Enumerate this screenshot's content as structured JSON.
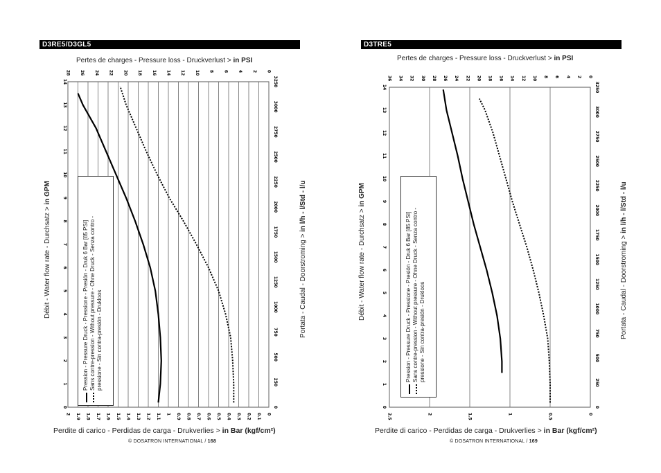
{
  "pages": [
    {
      "model": "D3RE5/D3GL5",
      "top_label_prefix": "Pertes de charges - Pressure loss - Druckverlust >",
      "top_label_unit": "in PSI",
      "left_label_prefix": "Débit - Water flow rate - Durchsatz >",
      "left_label_unit": "in GPM",
      "right_label_prefix": "Portata - Caudal - Doorstroming >",
      "right_label_unit": "in l/h - l/Std - l/u",
      "bottom_label_prefix": "Perdite di carico - Perdidas de carga - Drukverlies >",
      "bottom_label_unit": "in Bar (kgf/cm²)",
      "footer_text": "© DOSATRON INTERNATIONAL /",
      "page_number": "168",
      "legend": {
        "solid": "Pression - Pressure Druck - Pressione - Presión - Druk 6 Bar [85 PSI]",
        "dashed_line1": "Sans contre-pression - Without pressure - Ohne Druck - Senza contro -",
        "dashed_line2": "pressione - Sin  contra-presión - Drukloos"
      }
    },
    {
      "model": "D3TRE5",
      "top_label_prefix": "Pertes de charges - Pressure loss - Druckverlust >",
      "top_label_unit": "in PSI",
      "left_label_prefix": "Débit - Water flow rate - Durchsatz >",
      "left_label_unit": "in GPM",
      "right_label_prefix": "Portata - Caudal - Doorstroming >",
      "right_label_unit": "in l/h - l/Std - l/u",
      "bottom_label_prefix": "Perdite di carico - Perdidas de carga - Drukverlies >",
      "bottom_label_unit": "in Bar (kgf/cm²)",
      "footer_text": "© DOSATRON INTERNATIONAL /",
      "page_number": "169",
      "legend": {
        "solid": "Pression - Pressure Druck - Pressione - Presión - Druk 6 Bar [85 PSI]",
        "dashed_line1": "Sans contre-pression - Without pressure - Ohne Druck - Senza contro -",
        "dashed_line2": "pressione - Sin  contra-presión - Drukloos"
      }
    }
  ],
  "chart_data": [
    {
      "type": "line",
      "title": "D3RE5/D3GL5",
      "orientation": "rotated: flow on vertical page axis, pressure loss on horizontal page axis",
      "flow_axis_gpm": {
        "ticks": [
          "0",
          "1",
          "2",
          "3",
          "4",
          "5",
          "6",
          "7",
          "8",
          "9",
          "10",
          "11",
          "12",
          "13",
          "14"
        ],
        "range": [
          0,
          14
        ]
      },
      "flow_axis_lh": {
        "ticks": [
          "0",
          "250",
          "500",
          "750",
          "1000",
          "1250",
          "1500",
          "1750",
          "2000",
          "2250",
          "2500",
          "2750",
          "3000",
          "3250"
        ],
        "range": [
          0,
          3250
        ]
      },
      "pressure_axis_bar": {
        "ticks": [
          "2",
          "1.9",
          "1.8",
          "1.7",
          "1.6",
          "1.5",
          "1.4",
          "1.3",
          "1.2",
          "1.1",
          "1",
          "0.9",
          "0.8",
          "0.7",
          "0.6",
          "0.5",
          "0.4",
          "0.3",
          "0.2",
          "0.1",
          "0"
        ],
        "range": [
          2,
          0
        ]
      },
      "pressure_axis_psi": {
        "ticks": [
          "28",
          "26",
          "24",
          "22",
          "20",
          "18",
          "16",
          "14",
          "12",
          "10",
          "8",
          "6",
          "4",
          "2",
          "0"
        ],
        "range": [
          28,
          0
        ]
      },
      "series": [
        {
          "name": "Pression - Pressure Druck - Pressione - Presión - Druk 6 Bar [85 PSI]",
          "style": "solid",
          "gpm": [
            0.2,
            1,
            2,
            3,
            4,
            5,
            6,
            7,
            8,
            9,
            10,
            11,
            12,
            13,
            13.5
          ],
          "bar": [
            1.1,
            1.08,
            1.07,
            1.08,
            1.1,
            1.13,
            1.18,
            1.25,
            1.33,
            1.42,
            1.52,
            1.62,
            1.72,
            1.85,
            1.9
          ]
        },
        {
          "name": "Sans contre-pression - Without pressure - Ohne Druck - Senza contro - pressione - Sin  contra-presión - Drukloos",
          "style": "dashed",
          "gpm": [
            0.2,
            1,
            2,
            3,
            4,
            5,
            6,
            7,
            8,
            9,
            10,
            11,
            12,
            13,
            13.8
          ],
          "bar": [
            0.35,
            0.35,
            0.36,
            0.38,
            0.43,
            0.5,
            0.6,
            0.72,
            0.85,
            0.99,
            1.11,
            1.22,
            1.32,
            1.42,
            1.48
          ]
        }
      ]
    },
    {
      "type": "line",
      "title": "D3TRE5",
      "orientation": "rotated: flow on vertical page axis, pressure loss on horizontal page axis",
      "flow_axis_gpm": {
        "ticks": [
          "0",
          "1",
          "2",
          "3",
          "4",
          "5",
          "6",
          "7",
          "8",
          "9",
          "10",
          "11",
          "12",
          "13",
          "14"
        ],
        "range": [
          0,
          14
        ]
      },
      "flow_axis_lh": {
        "ticks": [
          "0",
          "250",
          "500",
          "750",
          "1000",
          "1250",
          "1500",
          "1750",
          "2000",
          "2250",
          "2500",
          "2750",
          "3000",
          "3250"
        ],
        "range": [
          0,
          3250
        ]
      },
      "pressure_axis_bar": {
        "ticks": [
          "2.5",
          "2",
          "1.5",
          "1",
          "0.5",
          "0"
        ],
        "range": [
          2.5,
          0
        ]
      },
      "pressure_axis_psi": {
        "ticks": [
          "36",
          "34",
          "32",
          "30",
          "28",
          "26",
          "24",
          "22",
          "20",
          "18",
          "16",
          "14",
          "12",
          "10",
          "8",
          "6",
          "4",
          "2",
          "0"
        ],
        "range": [
          36,
          0
        ]
      },
      "series": [
        {
          "name": "Pression - Pressure Druck - Pressione - Presión - Druk 6 Bar [85 PSI]",
          "style": "solid",
          "gpm": [
            1.5,
            2,
            3,
            4,
            5,
            6,
            7,
            8,
            9,
            10,
            11,
            12,
            13,
            13.9
          ],
          "bar": [
            1.1,
            1.1,
            1.12,
            1.16,
            1.22,
            1.29,
            1.37,
            1.45,
            1.52,
            1.59,
            1.65,
            1.72,
            1.79,
            1.83
          ]
        },
        {
          "name": "Sans contre-pression - Without pressure - Ohne Druck - Senza contro - pressione - Sin  contra-presión - Drukloos",
          "style": "dashed",
          "gpm": [
            0.2,
            1,
            2,
            3,
            4,
            5,
            6,
            7,
            8,
            9,
            10,
            11,
            12,
            13,
            13.5
          ],
          "bar": [
            0.5,
            0.5,
            0.51,
            0.53,
            0.58,
            0.64,
            0.71,
            0.79,
            0.88,
            0.97,
            1.05,
            1.13,
            1.21,
            1.31,
            1.38
          ]
        }
      ]
    }
  ]
}
